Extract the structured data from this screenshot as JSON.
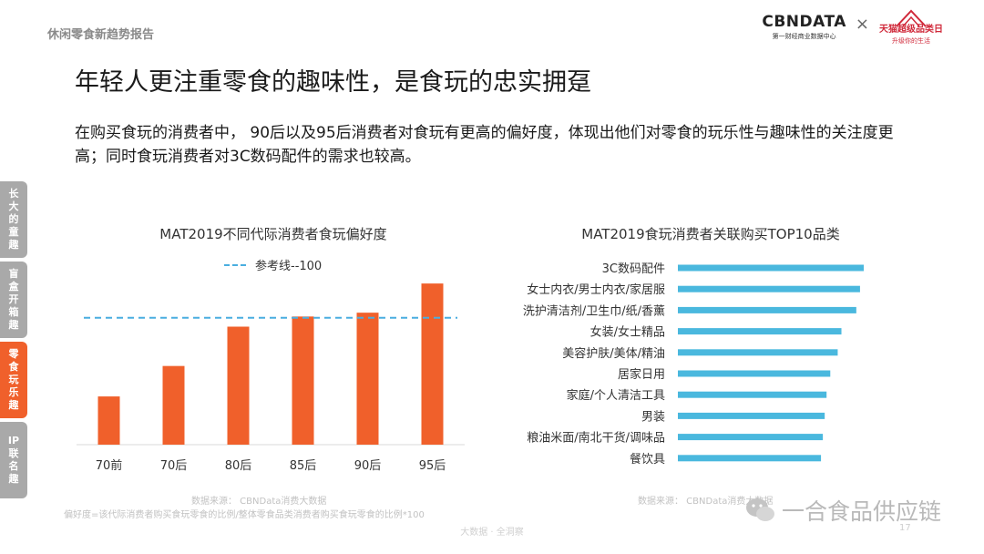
{
  "report_tag": "休闲零食新趋势报告",
  "logos": {
    "cbn_main": "CBNDATA",
    "cbn_sub": "第一财经商业数据中心",
    "tmall_main": "天猫超级品类日",
    "tmall_sub": "升级你的生活"
  },
  "headline": "年轻人更注重零食的趣味性，是食玩的忠实拥趸",
  "description": "在购买食玩的消费者中， 90后以及95后消费者对食玩有更高的偏好度，体现出他们对零食的玩乐性与趣味性的关注度更高；同时食玩消费者对3C数码配件的需求也较高。",
  "side_tabs": [
    {
      "label": "长大的童趣",
      "active": false
    },
    {
      "label": "盲盒开箱趣",
      "active": false
    },
    {
      "label": "零食玩乐趣",
      "active": true
    },
    {
      "label": "IP联名趣",
      "active": false
    }
  ],
  "left_source": "数据来源： CBNData消费大数据",
  "left_note": "偏好度=该代际消费者购买食玩零食的比例/整体零食品类消费者购买食玩零食的比例*100",
  "right_source": "数据来源： CBNData消费大数据",
  "footer": "大数据 · 全洞察",
  "page_number": "17",
  "watermark": "一合食品供应链",
  "chart_data": [
    {
      "type": "bar",
      "title": "MAT2019不同代际消费者食玩偏好度",
      "categories": [
        "70前",
        "70后",
        "80后",
        "85后",
        "90后",
        "95后"
      ],
      "values": [
        38,
        62,
        93,
        101,
        104,
        127
      ],
      "reference_line": {
        "value": 100,
        "label": "参考线--100"
      },
      "ylim": [
        0,
        135
      ],
      "color": "#f0602b",
      "reference_color": "#4aaee0",
      "legend_position": "top-left"
    },
    {
      "type": "bar",
      "orientation": "horizontal",
      "title": "MAT2019食玩消费者关联购买TOP10品类",
      "categories": [
        "3C数码配件",
        "女士内衣/男士内衣/家居服",
        "洗护清洁剂/卫生巾/纸/香薰",
        "女装/女士精品",
        "美容护肤/美体/精油",
        "居家日用",
        "家庭/个人清洁工具",
        "男装",
        "粮油米面/南北干货/调味品",
        "餐饮具"
      ],
      "values": [
        100,
        98,
        96,
        88,
        86,
        82,
        80,
        79,
        78,
        77
      ],
      "xlim": [
        0,
        100
      ],
      "color": "#4ab8de"
    }
  ]
}
